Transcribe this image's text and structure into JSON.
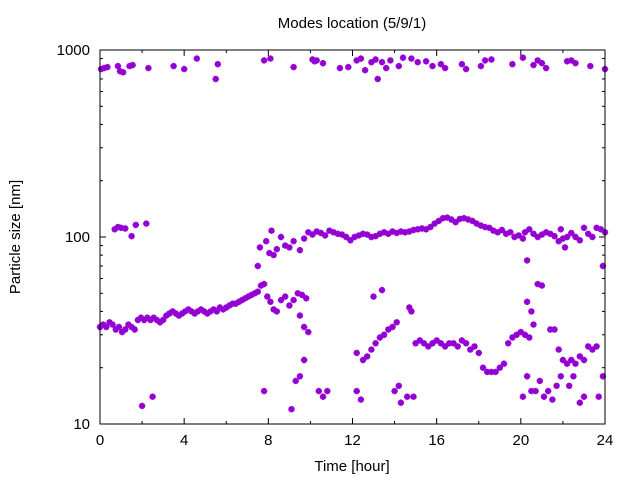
{
  "chart_data": {
    "type": "scatter",
    "title": "Modes location (5/9/1)",
    "xlabel": "Time [hour]",
    "ylabel": "Particle size [nm]",
    "xlim": [
      0,
      24
    ],
    "ylim": [
      10,
      1000
    ],
    "yscale": "log",
    "grid": false,
    "legend": "none",
    "marker_color": "#9400d3",
    "marker": "asterisk",
    "x_ticks": [
      0,
      4,
      8,
      12,
      16,
      20,
      24
    ],
    "x_tick_labels": [
      "0",
      "4",
      "8",
      "12",
      "16",
      "20",
      "24"
    ],
    "y_ticks": [
      10,
      100,
      1000
    ],
    "y_tick_labels": [
      "10",
      "100",
      "1000"
    ],
    "series": [
      {
        "points": [
          [
            0.05,
            790
          ],
          [
            0.2,
            800
          ],
          [
            0.35,
            810
          ],
          [
            0.85,
            820
          ],
          [
            0.95,
            770
          ],
          [
            1.1,
            760
          ],
          [
            1.4,
            820
          ],
          [
            1.55,
            830
          ],
          [
            2.3,
            800
          ],
          [
            3.5,
            820
          ],
          [
            4.0,
            790
          ],
          [
            4.6,
            900
          ],
          [
            5.5,
            700
          ],
          [
            5.6,
            840
          ],
          [
            7.8,
            880
          ],
          [
            8.1,
            900
          ],
          [
            9.2,
            810
          ],
          [
            10.1,
            890
          ],
          [
            10.2,
            870
          ],
          [
            10.3,
            880
          ],
          [
            10.6,
            850
          ],
          [
            11.4,
            800
          ],
          [
            11.8,
            810
          ],
          [
            12.2,
            880
          ],
          [
            12.4,
            900
          ],
          [
            12.6,
            780
          ],
          [
            12.9,
            860
          ],
          [
            13.1,
            890
          ],
          [
            13.2,
            700
          ],
          [
            13.4,
            860
          ],
          [
            13.6,
            800
          ],
          [
            13.8,
            880
          ],
          [
            14.2,
            820
          ],
          [
            14.4,
            910
          ],
          [
            14.8,
            900
          ],
          [
            15.1,
            860
          ],
          [
            15.5,
            870
          ],
          [
            15.8,
            820
          ],
          [
            16.2,
            840
          ],
          [
            16.4,
            800
          ],
          [
            17.2,
            840
          ],
          [
            17.4,
            790
          ],
          [
            18.1,
            820
          ],
          [
            18.3,
            880
          ],
          [
            18.6,
            890
          ],
          [
            19.6,
            840
          ],
          [
            20.1,
            910
          ],
          [
            20.6,
            830
          ],
          [
            20.8,
            880
          ],
          [
            21.0,
            850
          ],
          [
            21.2,
            800
          ],
          [
            22.2,
            870
          ],
          [
            22.4,
            880
          ],
          [
            22.6,
            850
          ],
          [
            23.3,
            820
          ],
          [
            24.0,
            790
          ]
        ]
      },
      {
        "points": [
          [
            0.7,
            110
          ],
          [
            0.85,
            113
          ],
          [
            1.0,
            112
          ],
          [
            1.2,
            111
          ],
          [
            1.5,
            101
          ],
          [
            1.7,
            116
          ],
          [
            2.2,
            118
          ],
          [
            7.5,
            70
          ],
          [
            7.6,
            88
          ],
          [
            7.9,
            95
          ],
          [
            8.05,
            82
          ],
          [
            8.15,
            108
          ],
          [
            8.25,
            80
          ],
          [
            8.4,
            86
          ],
          [
            8.6,
            100
          ],
          [
            8.8,
            90
          ],
          [
            9.0,
            88
          ],
          [
            9.2,
            95
          ],
          [
            9.5,
            85
          ],
          [
            9.7,
            98
          ],
          [
            9.9,
            106
          ],
          [
            10.1,
            103
          ],
          [
            10.3,
            107
          ],
          [
            10.5,
            105
          ],
          [
            10.7,
            102
          ],
          [
            10.9,
            108
          ],
          [
            11.1,
            106
          ],
          [
            11.3,
            104
          ],
          [
            11.5,
            103
          ],
          [
            11.7,
            100
          ],
          [
            11.9,
            96
          ],
          [
            12.1,
            100
          ],
          [
            12.3,
            102
          ],
          [
            12.5,
            104
          ],
          [
            12.7,
            103
          ],
          [
            12.9,
            100
          ],
          [
            13.1,
            101
          ],
          [
            13.3,
            104
          ],
          [
            13.5,
            106
          ],
          [
            13.7,
            104
          ],
          [
            13.9,
            107
          ],
          [
            14.1,
            105
          ],
          [
            14.3,
            107
          ],
          [
            14.5,
            106
          ],
          [
            14.7,
            107
          ],
          [
            14.9,
            109
          ],
          [
            15.1,
            110
          ],
          [
            15.3,
            111
          ],
          [
            15.5,
            110
          ],
          [
            15.7,
            113
          ],
          [
            15.9,
            118
          ],
          [
            16.1,
            122
          ],
          [
            16.3,
            126
          ],
          [
            16.5,
            127
          ],
          [
            16.7,
            124
          ],
          [
            16.9,
            120
          ],
          [
            17.1,
            125
          ],
          [
            17.3,
            126
          ],
          [
            17.5,
            124
          ],
          [
            17.7,
            122
          ],
          [
            17.9,
            118
          ],
          [
            18.1,
            115
          ],
          [
            18.3,
            113
          ],
          [
            18.5,
            112
          ],
          [
            18.7,
            108
          ],
          [
            18.9,
            106
          ],
          [
            19.1,
            109
          ],
          [
            19.3,
            104
          ],
          [
            19.5,
            106
          ],
          [
            19.7,
            100
          ],
          [
            19.9,
            102
          ],
          [
            20.1,
            98
          ],
          [
            20.2,
            106
          ],
          [
            20.3,
            75
          ],
          [
            20.4,
            110
          ],
          [
            20.6,
            104
          ],
          [
            20.8,
            100
          ],
          [
            21.0,
            103
          ],
          [
            21.2,
            106
          ],
          [
            21.4,
            104
          ],
          [
            21.6,
            101
          ],
          [
            21.8,
            95
          ],
          [
            21.9,
            110
          ],
          [
            22.0,
            98
          ],
          [
            22.1,
            88
          ],
          [
            22.2,
            100
          ],
          [
            22.4,
            105
          ],
          [
            22.6,
            100
          ],
          [
            22.8,
            96
          ],
          [
            23.0,
            112
          ],
          [
            23.2,
            104
          ],
          [
            23.4,
            100
          ],
          [
            23.6,
            112
          ],
          [
            23.8,
            110
          ],
          [
            23.9,
            70
          ],
          [
            24.0,
            106
          ]
        ]
      },
      {
        "points": [
          [
            0.0,
            33
          ],
          [
            0.15,
            34
          ],
          [
            0.3,
            33
          ],
          [
            0.45,
            35
          ],
          [
            0.6,
            34
          ],
          [
            0.75,
            32
          ],
          [
            0.9,
            33
          ],
          [
            1.05,
            31
          ],
          [
            1.2,
            32
          ],
          [
            1.35,
            34
          ],
          [
            1.5,
            33
          ],
          [
            1.65,
            32
          ],
          [
            1.8,
            36
          ],
          [
            1.95,
            37
          ],
          [
            2.1,
            36
          ],
          [
            2.25,
            37
          ],
          [
            2.4,
            36
          ],
          [
            2.55,
            37
          ],
          [
            2.7,
            36
          ],
          [
            2.85,
            35
          ],
          [
            3.0,
            36
          ],
          [
            3.15,
            38
          ],
          [
            3.3,
            39
          ],
          [
            3.45,
            40
          ],
          [
            3.6,
            39
          ],
          [
            3.75,
            38
          ],
          [
            3.9,
            39
          ],
          [
            4.05,
            40
          ],
          [
            4.2,
            41
          ],
          [
            4.35,
            40
          ],
          [
            4.5,
            39
          ],
          [
            4.65,
            40
          ],
          [
            4.8,
            41
          ],
          [
            4.95,
            40
          ],
          [
            5.1,
            39
          ],
          [
            5.25,
            40
          ],
          [
            5.4,
            41
          ],
          [
            5.55,
            40
          ],
          [
            5.7,
            42
          ],
          [
            5.85,
            41
          ],
          [
            6.0,
            42
          ],
          [
            6.15,
            43
          ],
          [
            6.3,
            44
          ],
          [
            6.45,
            44
          ],
          [
            6.6,
            45
          ],
          [
            6.75,
            46
          ],
          [
            6.9,
            47
          ],
          [
            7.05,
            48
          ],
          [
            7.2,
            49
          ],
          [
            7.35,
            50
          ],
          [
            7.5,
            51
          ],
          [
            7.65,
            55
          ],
          [
            7.8,
            56
          ],
          [
            7.95,
            48
          ],
          [
            8.1,
            45
          ],
          [
            8.25,
            41
          ],
          [
            8.4,
            40
          ],
          [
            8.6,
            46
          ],
          [
            8.8,
            48
          ],
          [
            9.0,
            43
          ],
          [
            9.2,
            46
          ],
          [
            9.4,
            50
          ],
          [
            9.6,
            49
          ],
          [
            9.8,
            47
          ],
          [
            9.5,
            38
          ],
          [
            9.7,
            33
          ],
          [
            9.9,
            31
          ],
          [
            12.2,
            24
          ],
          [
            12.5,
            22
          ],
          [
            12.7,
            23
          ],
          [
            12.9,
            25
          ],
          [
            13.1,
            27
          ],
          [
            13.3,
            29
          ],
          [
            13.5,
            30
          ],
          [
            13.7,
            32
          ],
          [
            13.9,
            33
          ],
          [
            14.1,
            35
          ],
          [
            13.0,
            48
          ],
          [
            13.4,
            52
          ],
          [
            14.7,
            42
          ],
          [
            14.8,
            40
          ],
          [
            15.0,
            27
          ],
          [
            15.2,
            28
          ],
          [
            15.4,
            27
          ],
          [
            15.6,
            26
          ],
          [
            15.8,
            27
          ],
          [
            16.0,
            28
          ],
          [
            16.2,
            27
          ],
          [
            16.4,
            26
          ],
          [
            16.6,
            27
          ],
          [
            16.8,
            27
          ],
          [
            17.0,
            26
          ],
          [
            17.2,
            28
          ],
          [
            17.4,
            27
          ],
          [
            17.6,
            25
          ],
          [
            17.8,
            26
          ],
          [
            18.0,
            24
          ],
          [
            18.2,
            20
          ],
          [
            18.4,
            19
          ],
          [
            18.6,
            19
          ],
          [
            18.8,
            19
          ],
          [
            19.0,
            20
          ],
          [
            19.2,
            21
          ],
          [
            19.4,
            27
          ],
          [
            19.6,
            29
          ],
          [
            19.8,
            30
          ],
          [
            20.0,
            31
          ],
          [
            20.2,
            30
          ],
          [
            20.4,
            29
          ],
          [
            20.3,
            45
          ],
          [
            20.5,
            40
          ],
          [
            20.6,
            34
          ],
          [
            20.8,
            56
          ],
          [
            21.0,
            55
          ],
          [
            21.4,
            32
          ],
          [
            21.6,
            32
          ],
          [
            21.8,
            25
          ],
          [
            22.0,
            22
          ],
          [
            22.2,
            21
          ],
          [
            22.4,
            22
          ],
          [
            22.6,
            21
          ],
          [
            22.8,
            23
          ],
          [
            23.0,
            22
          ],
          [
            23.2,
            26
          ],
          [
            23.4,
            25
          ],
          [
            23.6,
            26
          ]
        ]
      },
      {
        "points": [
          [
            2.0,
            12.5
          ],
          [
            2.5,
            14
          ],
          [
            7.8,
            15
          ],
          [
            9.1,
            12
          ],
          [
            9.3,
            17
          ],
          [
            9.5,
            18
          ],
          [
            9.7,
            22
          ],
          [
            10.4,
            15
          ],
          [
            10.6,
            14
          ],
          [
            10.8,
            15
          ],
          [
            12.2,
            15
          ],
          [
            12.4,
            13.5
          ],
          [
            14.0,
            15
          ],
          [
            14.3,
            13
          ],
          [
            14.6,
            14
          ],
          [
            14.9,
            14
          ],
          [
            14.2,
            16
          ],
          [
            20.1,
            14
          ],
          [
            20.3,
            18
          ],
          [
            20.5,
            15
          ],
          [
            20.7,
            15
          ],
          [
            20.9,
            17
          ],
          [
            21.1,
            14
          ],
          [
            21.3,
            15
          ],
          [
            21.5,
            13.5
          ],
          [
            21.7,
            16
          ],
          [
            21.9,
            18
          ],
          [
            22.3,
            16
          ],
          [
            22.5,
            18
          ],
          [
            22.8,
            13
          ],
          [
            23.0,
            14
          ],
          [
            23.7,
            14
          ],
          [
            23.9,
            18
          ]
        ]
      }
    ]
  }
}
